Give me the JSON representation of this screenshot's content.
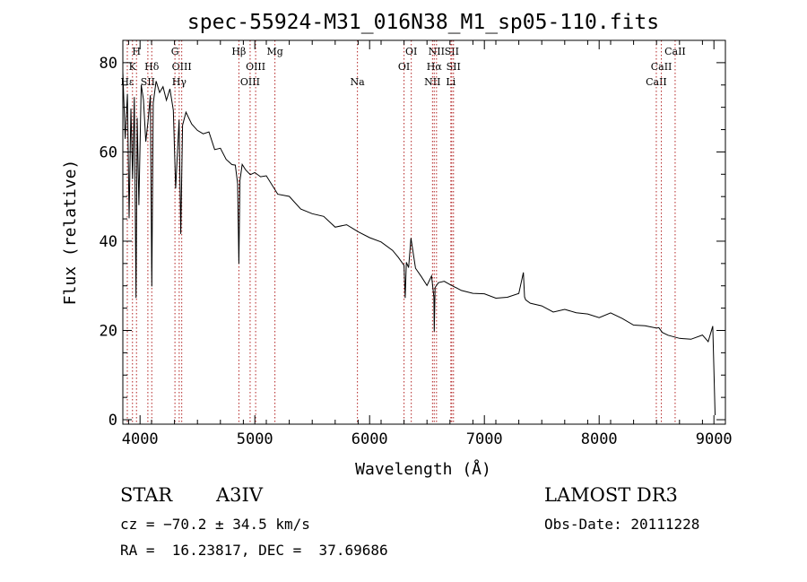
{
  "chart_data": {
    "type": "line",
    "title": "spec-55924-M31_016N38_M1_sp05-110.fits",
    "xlabel": "Wavelength (Å)",
    "ylabel": "Flux (relative)",
    "xlim": [
      3850,
      9100
    ],
    "ylim": [
      -1,
      85
    ],
    "x_ticks": [
      4000,
      5000,
      6000,
      7000,
      8000,
      9000
    ],
    "y_ticks": [
      0,
      20,
      40,
      60,
      80
    ],
    "series": [
      {
        "name": "spectrum",
        "color": "#000000",
        "x": [
          3850,
          3870,
          3890,
          3905,
          3920,
          3935,
          3950,
          3965,
          3975,
          3990,
          4010,
          4030,
          4050,
          4070,
          4090,
          4102,
          4115,
          4140,
          4170,
          4200,
          4230,
          4260,
          4290,
          4310,
          4340,
          4355,
          4370,
          4400,
          4450,
          4500,
          4550,
          4600,
          4650,
          4700,
          4750,
          4800,
          4830,
          4850,
          4861,
          4870,
          4890,
          4920,
          4960,
          5000,
          5050,
          5100,
          5200,
          5300,
          5400,
          5500,
          5600,
          5700,
          5800,
          5900,
          6000,
          6100,
          6200,
          6250,
          6300,
          6310,
          6320,
          6340,
          6360,
          6400,
          6450,
          6500,
          6540,
          6560,
          6563,
          6570,
          6600,
          6650,
          6700,
          6800,
          6900,
          7000,
          7100,
          7200,
          7300,
          7340,
          7350,
          7360,
          7400,
          7500,
          7600,
          7700,
          7800,
          7900,
          8000,
          8100,
          8200,
          8300,
          8400,
          8500,
          8520,
          8550,
          8600,
          8700,
          8800,
          8900,
          8950,
          8990,
          9000,
          9010
        ],
        "y": [
          78,
          62,
          74,
          45,
          70,
          54,
          72,
          28,
          68,
          48,
          74,
          71,
          63,
          66,
          72,
          30,
          70,
          76,
          73,
          75,
          71,
          74,
          69,
          52,
          68,
          42,
          66,
          70,
          67,
          65,
          63,
          64,
          61,
          61,
          59,
          57,
          56,
          52,
          35,
          53,
          57,
          55,
          55,
          56,
          54,
          54,
          51,
          50,
          48,
          47,
          46,
          44,
          43,
          42,
          41,
          39,
          38,
          37,
          35,
          28,
          36,
          35,
          40,
          35,
          33,
          31,
          32,
          28,
          20,
          30,
          31,
          31,
          31,
          30,
          29,
          28,
          28,
          27,
          29,
          34,
          27,
          27,
          27,
          26,
          25,
          25,
          24,
          24,
          23,
          23,
          22,
          22,
          21,
          20,
          20,
          19,
          18,
          19,
          19,
          19,
          18,
          20,
          12,
          1
        ]
      }
    ],
    "lines": [
      {
        "name": "Hε",
        "x": 3889,
        "row": 3
      },
      {
        "name": "K",
        "x": 3934,
        "row": 2
      },
      {
        "name": "H",
        "x": 3969,
        "row": 1
      },
      {
        "name": "SII",
        "x": 4068,
        "row": 3
      },
      {
        "name": "Hδ",
        "x": 4102,
        "row": 2
      },
      {
        "name": "G",
        "x": 4304,
        "row": 1
      },
      {
        "name": "OIII",
        "x": 4363,
        "row": 2
      },
      {
        "name": "Hγ",
        "x": 4341,
        "row": 3
      },
      {
        "name": "Hβ",
        "x": 4861,
        "row": 1
      },
      {
        "name": "OIII",
        "x": 4959,
        "row": 3
      },
      {
        "name": "OIII",
        "x": 5007,
        "row": 2
      },
      {
        "name": "Mg",
        "x": 5175,
        "row": 1
      },
      {
        "name": "Na",
        "x": 5894,
        "row": 3
      },
      {
        "name": "OI",
        "x": 6300,
        "row": 2
      },
      {
        "name": "OI",
        "x": 6363,
        "row": 1
      },
      {
        "name": "NII",
        "x": 6548,
        "row": 3
      },
      {
        "name": "NII",
        "x": 6583,
        "row": 1
      },
      {
        "name": "Hα",
        "x": 6563,
        "row": 2
      },
      {
        "name": "SII",
        "x": 6716,
        "row": 1
      },
      {
        "name": "SII",
        "x": 6731,
        "row": 2
      },
      {
        "name": "Li",
        "x": 6708,
        "row": 3
      },
      {
        "name": "CaII",
        "x": 8498,
        "row": 3
      },
      {
        "name": "CaII",
        "x": 8542,
        "row": 2
      },
      {
        "name": "CaII",
        "x": 8662,
        "row": 1
      }
    ],
    "line_color": "#b22222"
  },
  "info": {
    "object_class": "STAR",
    "subclass": "A3IV",
    "survey": "LAMOST DR3",
    "redshift_text": "cz = −70.2 ± 34.5 km/s",
    "obs_date_text": "Obs-Date: 20111228",
    "coords_text": "RA =  16.23817, DEC =  37.69686"
  }
}
